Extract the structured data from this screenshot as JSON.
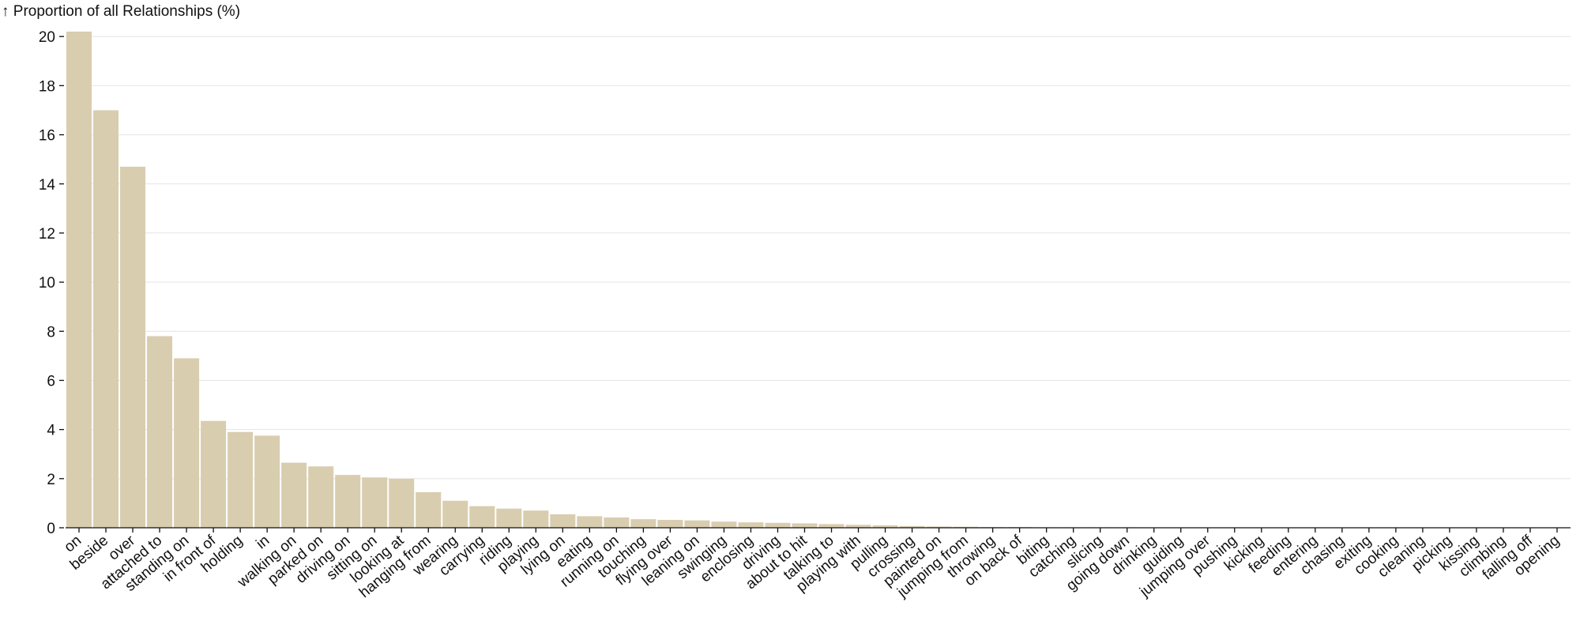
{
  "chart_data": {
    "type": "bar",
    "y_label": "↑ Proportion of all Relationships (%)",
    "categories": [
      "on",
      "beside",
      "over",
      "attached to",
      "standing on",
      "in front of",
      "holding",
      "in",
      "walking on",
      "parked on",
      "driving on",
      "sitting on",
      "looking at",
      "hanging from",
      "wearing",
      "carrying",
      "riding",
      "playing",
      "lying on",
      "eating",
      "running on",
      "touching",
      "flying over",
      "leaning on",
      "swinging",
      "enclosing",
      "driving",
      "about to hit",
      "talking to",
      "playing with",
      "pulling",
      "crossing",
      "painted on",
      "jumping from",
      "throwing",
      "on back of",
      "biting",
      "catching",
      "slicing",
      "going down",
      "drinking",
      "guiding",
      "jumping over",
      "pushing",
      "kicking",
      "feeding",
      "entering",
      "chasing",
      "exiting",
      "cooking",
      "cleaning",
      "picking",
      "kissing",
      "climbing",
      "falling off",
      "opening"
    ],
    "values": [
      20.2,
      17.0,
      14.7,
      7.8,
      6.9,
      4.35,
      3.9,
      3.75,
      2.65,
      2.5,
      2.15,
      2.05,
      2.0,
      1.45,
      1.1,
      0.88,
      0.78,
      0.7,
      0.55,
      0.47,
      0.42,
      0.35,
      0.32,
      0.3,
      0.25,
      0.22,
      0.2,
      0.18,
      0.15,
      0.12,
      0.1,
      0.07,
      0.05,
      0.04,
      0.03,
      0.03,
      0.02,
      0.02,
      0.02,
      0.02,
      0.01,
      0.01,
      0.01,
      0.01,
      0.01,
      0.01,
      0.01,
      0.01,
      0.01,
      0.01,
      0.01,
      0.01,
      0.01,
      0.01,
      0.01,
      0.01
    ],
    "color": "#d9cdb0",
    "ylim": [
      0,
      20.2
    ],
    "yticks": [
      0,
      2,
      4,
      6,
      8,
      10,
      12,
      14,
      16,
      18,
      20
    ],
    "grid": true
  }
}
